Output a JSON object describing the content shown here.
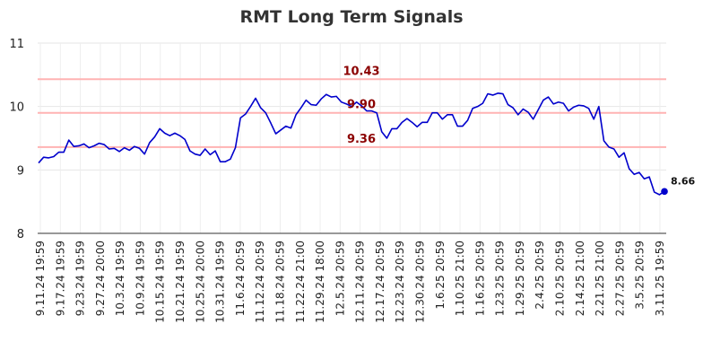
{
  "chart_data": {
    "type": "line",
    "title": "RMT Long Term Signals",
    "xlabel": "",
    "ylabel": "",
    "ylim": [
      8,
      11
    ],
    "yticks": [
      "8",
      "9",
      "10",
      "11"
    ],
    "grid": true,
    "x_tick_labels": [
      "9.11.24 19:59",
      "9.17.24 19:59",
      "9.23.24 19:59",
      "9.27.24 20:00",
      "10.3.24 19:59",
      "10.9.24 19:59",
      "10.15.24 19:59",
      "10.21.24 19:59",
      "10.25.24 20:00",
      "10.31.24 19:59",
      "11.6.24 20:59",
      "11.12.24 20:59",
      "11.18.24 20:59",
      "11.22.24 21:00",
      "11.29.24 18:00",
      "12.5.24 20:59",
      "12.11.24 20:59",
      "12.17.24 20:59",
      "12.23.24 20:59",
      "12.30.24 20:59",
      "1.6.25 20:59",
      "1.10.25 21:00",
      "1.16.25 20:59",
      "1.23.25 20:59",
      "1.29.25 20:59",
      "2.4.25 20:59",
      "2.10.25 20:59",
      "2.14.25 21:00",
      "2.21.25 21:00",
      "2.27.25 20:59",
      "3.5.25 20:59",
      "3.11.25 19:59"
    ],
    "series": [
      {
        "values": [
          9.11,
          9.2,
          9.19,
          9.21,
          9.28,
          9.28,
          9.47,
          9.37,
          9.38,
          9.41,
          9.35,
          9.38,
          9.42,
          9.4,
          9.33,
          9.34,
          9.29,
          9.35,
          9.31,
          9.37,
          9.34,
          9.25,
          9.43,
          9.52,
          9.65,
          9.58,
          9.54,
          9.58,
          9.54,
          9.48,
          9.3,
          9.25,
          9.23,
          9.33,
          9.24,
          9.3,
          9.13,
          9.13,
          9.17,
          9.35,
          9.82,
          9.88,
          10.0,
          10.13,
          9.98,
          9.9,
          9.74,
          9.57,
          9.63,
          9.69,
          9.66,
          9.87,
          9.98,
          10.1,
          10.03,
          10.02,
          10.12,
          10.19,
          10.15,
          10.16,
          10.07,
          10.04,
          10.0,
          10.07,
          10.01,
          9.93,
          9.93,
          9.9,
          9.6,
          9.5,
          9.65,
          9.65,
          9.75,
          9.81,
          9.75,
          9.68,
          9.75,
          9.75,
          9.9,
          9.9,
          9.8,
          9.87,
          9.87,
          9.69,
          9.69,
          9.78,
          9.97,
          10.0,
          10.05,
          10.2,
          10.18,
          10.21,
          10.2,
          10.03,
          9.98,
          9.87,
          9.96,
          9.91,
          9.8,
          9.95,
          10.1,
          10.15,
          10.04,
          10.07,
          10.05,
          9.93,
          9.99,
          10.02,
          10.01,
          9.97,
          9.8,
          10.0,
          9.46,
          9.36,
          9.33,
          9.2,
          9.27,
          9.02,
          8.93,
          8.96,
          8.86,
          8.89,
          8.65,
          8.61,
          8.66
        ],
        "color": "#0000cc"
      }
    ],
    "reference_lines": [
      {
        "value": 10.43,
        "label": "10.43",
        "color": "#ffb3b3"
      },
      {
        "value": 9.9,
        "label": "9.90",
        "color": "#ffb3b3"
      },
      {
        "value": 9.36,
        "label": "9.36",
        "color": "#ffb3b3"
      }
    ],
    "last_value_label": "8.66"
  }
}
